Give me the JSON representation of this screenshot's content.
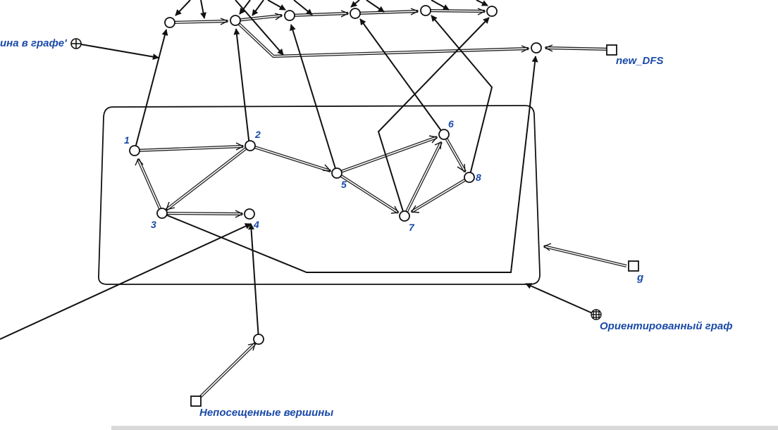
{
  "colors": {
    "line": "#111111",
    "label": "#1a4aa8",
    "node_fill": "#ffffff"
  },
  "labels": {
    "concept_partial": "ина в графе'",
    "new_dfs": "new_DFS",
    "g": "g",
    "oriented_graph": "Ориентированный граф",
    "unvisited": "Непосещенные вершины"
  },
  "vertices": [
    {
      "id": "1",
      "label": "1"
    },
    {
      "id": "2",
      "label": "2"
    },
    {
      "id": "3",
      "label": "3"
    },
    {
      "id": "4",
      "label": "4"
    },
    {
      "id": "5",
      "label": "5"
    },
    {
      "id": "6",
      "label": "6"
    },
    {
      "id": "7",
      "label": "7"
    },
    {
      "id": "8",
      "label": "8"
    }
  ],
  "arcs": [
    {
      "from": "1",
      "to": "2"
    },
    {
      "from": "2",
      "to": "3"
    },
    {
      "from": "3",
      "to": "1"
    },
    {
      "from": "3",
      "to": "4"
    },
    {
      "from": "2",
      "to": "5"
    },
    {
      "from": "5",
      "to": "6"
    },
    {
      "from": "5",
      "to": "7"
    },
    {
      "from": "6",
      "to": "8"
    },
    {
      "from": "8",
      "to": "7"
    },
    {
      "from": "7",
      "to": "6"
    }
  ],
  "icons": {
    "concept": "circle-cross-icon",
    "variable": "square-icon"
  }
}
